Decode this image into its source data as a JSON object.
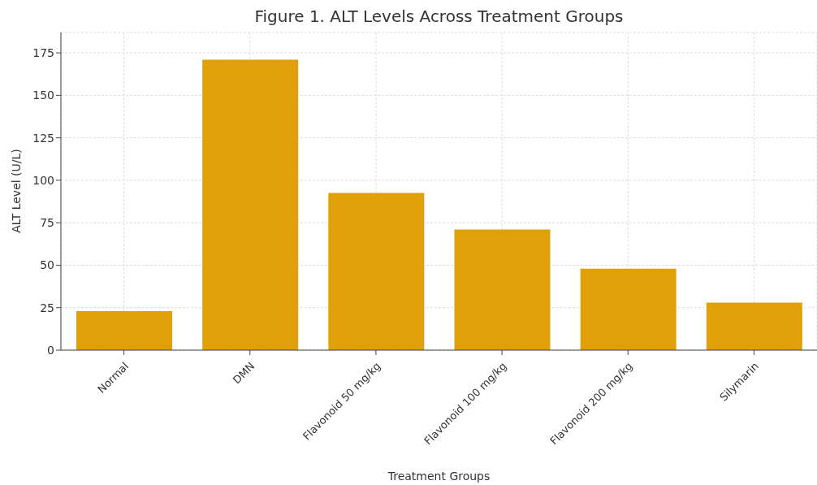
{
  "chart_data": {
    "type": "bar",
    "title": "Figure 1. ALT Levels Across Treatment Groups",
    "xlabel": "Treatment Groups",
    "ylabel": "ALT Level (U/L)",
    "categories": [
      "Normal",
      "DMN",
      "Flavonoid 50 mg/kg",
      "Flavonoid 100 mg/kg",
      "Flavonoid 200 mg/kg",
      "Silymarin"
    ],
    "values": [
      23,
      171,
      92.5,
      71,
      48,
      28
    ],
    "color": "#e0a00a",
    "ylim": [
      0,
      187
    ],
    "yticks": [
      0,
      25,
      50,
      75,
      100,
      125,
      150,
      175
    ],
    "grid": true
  }
}
